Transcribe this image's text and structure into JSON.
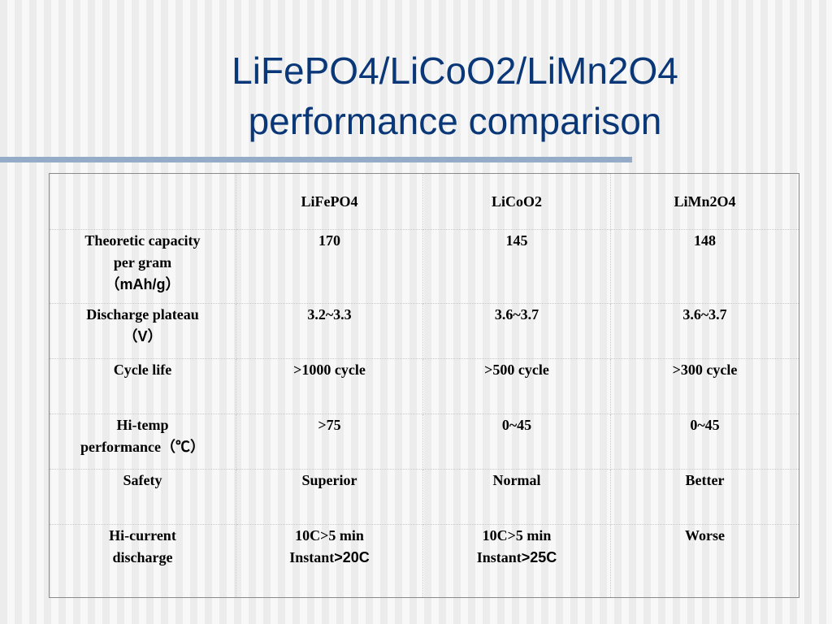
{
  "slide": {
    "title_line1": "LiFePO4/LiCoO2/LiMn2O4",
    "title_line2": "performance comparison"
  },
  "table": {
    "headers": [
      "",
      "LiFePO4",
      "LiCoO2",
      "LiMn2O4"
    ],
    "rows": [
      {
        "label_lines": [
          "Theoretic capacity",
          "per gram",
          "（",
          "mAh/g",
          "）"
        ],
        "values": [
          "170",
          "145",
          "148"
        ]
      },
      {
        "label_lines": [
          "Discharge plateau",
          "（",
          "V",
          "）"
        ],
        "values": [
          "3.2~3.3",
          "3.6~3.7",
          "3.6~3.7"
        ]
      },
      {
        "label_lines": [
          "Cycle life"
        ],
        "values": [
          ">1000 cycle",
          ">500 cycle",
          ">300 cycle"
        ]
      },
      {
        "label_lines": [
          "Hi-temp",
          "performance（℃）"
        ],
        "values": [
          ">75",
          "0~45",
          "0~45"
        ]
      },
      {
        "label_lines": [
          "Safety"
        ],
        "values": [
          "Superior",
          "Normal",
          "Better"
        ]
      },
      {
        "label_lines": [
          "Hi-current",
          "discharge"
        ],
        "values": [
          {
            "line1": "10C>5 min",
            "line2_prefix": "Instant",
            "line2_value": ">20C"
          },
          {
            "line1": "10C>5 min",
            "line2_prefix": "Instant",
            "line2_value": ">25C"
          },
          "Worse"
        ]
      }
    ]
  }
}
